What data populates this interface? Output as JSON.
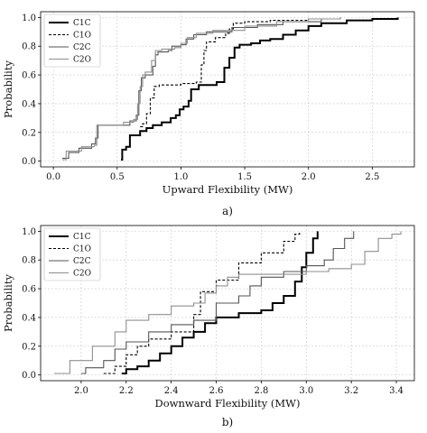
{
  "chart_data": [
    {
      "type": "line",
      "caption": "a)",
      "xlabel": "Upward Flexibility (MW)",
      "ylabel": "Probability",
      "xlim": [
        -0.1,
        2.83
      ],
      "ylim": [
        -0.04,
        1.04
      ],
      "xticks": [
        "0.0",
        "0.5",
        "1.0",
        "1.5",
        "2.0",
        "2.5"
      ],
      "yticks": [
        "0.0",
        "0.2",
        "0.4",
        "0.6",
        "0.8",
        "1.0"
      ],
      "grid": true,
      "legend_position": "top-left",
      "series": [
        {
          "name": "C1C",
          "color": "#000000",
          "width": 2.0,
          "dash": "",
          "points": [
            [
              0.53,
              0.01
            ],
            [
              0.54,
              0.08
            ],
            [
              0.57,
              0.1
            ],
            [
              0.6,
              0.18
            ],
            [
              0.68,
              0.21
            ],
            [
              0.73,
              0.23
            ],
            [
              0.78,
              0.25
            ],
            [
              0.85,
              0.27
            ],
            [
              0.92,
              0.3
            ],
            [
              0.96,
              0.32
            ],
            [
              0.99,
              0.36
            ],
            [
              1.02,
              0.38
            ],
            [
              1.06,
              0.42
            ],
            [
              1.08,
              0.5
            ],
            [
              1.14,
              0.53
            ],
            [
              1.28,
              0.55
            ],
            [
              1.34,
              0.65
            ],
            [
              1.38,
              0.72
            ],
            [
              1.42,
              0.79
            ],
            [
              1.46,
              0.81
            ],
            [
              1.55,
              0.82
            ],
            [
              1.62,
              0.84
            ],
            [
              1.7,
              0.85
            ],
            [
              1.8,
              0.88
            ],
            [
              1.9,
              0.91
            ],
            [
              2.0,
              0.94
            ],
            [
              2.1,
              0.96
            ],
            [
              2.3,
              0.98
            ],
            [
              2.5,
              0.99
            ],
            [
              2.7,
              1.0
            ]
          ]
        },
        {
          "name": "C1O",
          "color": "#000000",
          "width": 1.1,
          "dash": "3 2",
          "points": [
            [
              0.68,
              0.24
            ],
            [
              0.7,
              0.26
            ],
            [
              0.73,
              0.33
            ],
            [
              0.76,
              0.44
            ],
            [
              0.79,
              0.52
            ],
            [
              0.83,
              0.53
            ],
            [
              1.0,
              0.54
            ],
            [
              1.12,
              0.55
            ],
            [
              1.16,
              0.67
            ],
            [
              1.18,
              0.77
            ],
            [
              1.2,
              0.83
            ],
            [
              1.27,
              0.86
            ],
            [
              1.35,
              0.89
            ],
            [
              1.38,
              0.92
            ],
            [
              1.41,
              0.96
            ],
            [
              1.5,
              0.97
            ],
            [
              1.7,
              0.98
            ],
            [
              2.0,
              0.99
            ],
            [
              2.25,
              1.0
            ]
          ]
        },
        {
          "name": "C2C",
          "color": "#555555",
          "width": 1.1,
          "dash": "",
          "points": [
            [
              0.07,
              0.02
            ],
            [
              0.12,
              0.06
            ],
            [
              0.2,
              0.09
            ],
            [
              0.3,
              0.12
            ],
            [
              0.33,
              0.16
            ],
            [
              0.35,
              0.25
            ],
            [
              0.6,
              0.28
            ],
            [
              0.65,
              0.32
            ],
            [
              0.67,
              0.49
            ],
            [
              0.69,
              0.58
            ],
            [
              0.72,
              0.6
            ],
            [
              0.78,
              0.66
            ],
            [
              0.8,
              0.74
            ],
            [
              0.82,
              0.76
            ],
            [
              0.9,
              0.77
            ],
            [
              0.93,
              0.8
            ],
            [
              1.0,
              0.81
            ],
            [
              1.04,
              0.85
            ],
            [
              1.1,
              0.88
            ],
            [
              1.2,
              0.9
            ],
            [
              1.4,
              0.93
            ],
            [
              1.6,
              0.95
            ],
            [
              1.8,
              0.97
            ],
            [
              2.1,
              0.99
            ],
            [
              2.25,
              1.0
            ]
          ]
        },
        {
          "name": "C2O",
          "color": "#8f8f8f",
          "width": 1.1,
          "dash": "",
          "points": [
            [
              0.07,
              0.01
            ],
            [
              0.1,
              0.07
            ],
            [
              0.22,
              0.1
            ],
            [
              0.32,
              0.11
            ],
            [
              0.34,
              0.25
            ],
            [
              0.55,
              0.27
            ],
            [
              0.63,
              0.29
            ],
            [
              0.66,
              0.4
            ],
            [
              0.68,
              0.52
            ],
            [
              0.7,
              0.6
            ],
            [
              0.72,
              0.62
            ],
            [
              0.77,
              0.7
            ],
            [
              0.8,
              0.77
            ],
            [
              0.85,
              0.78
            ],
            [
              0.95,
              0.79
            ],
            [
              1.0,
              0.82
            ],
            [
              1.05,
              0.86
            ],
            [
              1.12,
              0.89
            ],
            [
              1.25,
              0.91
            ],
            [
              1.5,
              0.94
            ],
            [
              1.75,
              0.97
            ],
            [
              2.0,
              0.99
            ],
            [
              2.25,
              1.0
            ]
          ]
        }
      ]
    },
    {
      "type": "line",
      "caption": "b)",
      "xlabel": "Downward Flexibility (MW)",
      "ylabel": "Probability",
      "xlim": [
        1.82,
        3.48
      ],
      "ylim": [
        -0.04,
        1.04
      ],
      "xticks": [
        "2.0",
        "2.2",
        "2.4",
        "2.6",
        "2.8",
        "3.0",
        "3.2",
        "3.4"
      ],
      "yticks": [
        "0.0",
        "0.2",
        "0.4",
        "0.6",
        "0.8",
        "1.0"
      ],
      "grid": true,
      "legend_position": "top-left",
      "series": [
        {
          "name": "C1C",
          "color": "#000000",
          "width": 2.0,
          "dash": "",
          "points": [
            [
              2.18,
              0.01
            ],
            [
              2.2,
              0.04
            ],
            [
              2.25,
              0.06
            ],
            [
              2.3,
              0.1
            ],
            [
              2.35,
              0.15
            ],
            [
              2.4,
              0.2
            ],
            [
              2.45,
              0.26
            ],
            [
              2.5,
              0.3
            ],
            [
              2.55,
              0.36
            ],
            [
              2.6,
              0.4
            ],
            [
              2.7,
              0.43
            ],
            [
              2.8,
              0.45
            ],
            [
              2.85,
              0.5
            ],
            [
              2.9,
              0.55
            ],
            [
              2.95,
              0.65
            ],
            [
              2.98,
              0.75
            ],
            [
              3.0,
              0.85
            ],
            [
              3.03,
              0.95
            ],
            [
              3.05,
              1.0
            ]
          ]
        },
        {
          "name": "C1O",
          "color": "#000000",
          "width": 1.1,
          "dash": "3 2",
          "points": [
            [
              2.1,
              0.01
            ],
            [
              2.15,
              0.06
            ],
            [
              2.2,
              0.14
            ],
            [
              2.25,
              0.2
            ],
            [
              2.3,
              0.25
            ],
            [
              2.4,
              0.3
            ],
            [
              2.5,
              0.42
            ],
            [
              2.53,
              0.58
            ],
            [
              2.6,
              0.66
            ],
            [
              2.7,
              0.78
            ],
            [
              2.8,
              0.85
            ],
            [
              2.9,
              0.93
            ],
            [
              2.95,
              0.98
            ],
            [
              2.97,
              1.0
            ]
          ]
        },
        {
          "name": "C2C",
          "color": "#555555",
          "width": 1.1,
          "dash": "",
          "points": [
            [
              2.0,
              0.01
            ],
            [
              2.02,
              0.05
            ],
            [
              2.1,
              0.1
            ],
            [
              2.15,
              0.18
            ],
            [
              2.2,
              0.23
            ],
            [
              2.3,
              0.3
            ],
            [
              2.4,
              0.35
            ],
            [
              2.5,
              0.38
            ],
            [
              2.6,
              0.5
            ],
            [
              2.7,
              0.55
            ],
            [
              2.75,
              0.62
            ],
            [
              2.8,
              0.68
            ],
            [
              2.9,
              0.72
            ],
            [
              3.0,
              0.76
            ],
            [
              3.08,
              0.8
            ],
            [
              3.12,
              0.88
            ],
            [
              3.17,
              0.95
            ],
            [
              3.21,
              1.0
            ]
          ]
        },
        {
          "name": "C2O",
          "color": "#8f8f8f",
          "width": 1.1,
          "dash": "",
          "points": [
            [
              1.88,
              0.01
            ],
            [
              1.95,
              0.1
            ],
            [
              2.05,
              0.2
            ],
            [
              2.15,
              0.3
            ],
            [
              2.2,
              0.38
            ],
            [
              2.3,
              0.42
            ],
            [
              2.4,
              0.48
            ],
            [
              2.5,
              0.5
            ],
            [
              2.55,
              0.57
            ],
            [
              2.6,
              0.62
            ],
            [
              2.65,
              0.68
            ],
            [
              2.7,
              0.7
            ],
            [
              2.8,
              0.7
            ],
            [
              3.0,
              0.72
            ],
            [
              3.1,
              0.74
            ],
            [
              3.2,
              0.77
            ],
            [
              3.26,
              0.86
            ],
            [
              3.32,
              0.95
            ],
            [
              3.38,
              0.98
            ],
            [
              3.42,
              1.0
            ]
          ]
        }
      ]
    }
  ]
}
